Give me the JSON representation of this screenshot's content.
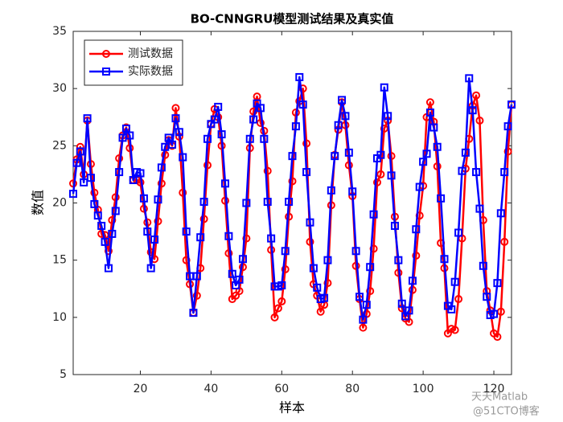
{
  "chart_data": {
    "type": "line",
    "title": "BO-CNNGRU模型测试结果及真实值",
    "x_label": "样本",
    "y_label": "数值",
    "watermark": [
      "天天Matlab",
      "@51CTO博客"
    ],
    "x": [
      1,
      2,
      3,
      4,
      5,
      6,
      7,
      8,
      9,
      10,
      11,
      12,
      13,
      14,
      15,
      16,
      17,
      18,
      19,
      20,
      21,
      22,
      23,
      24,
      25,
      26,
      27,
      28,
      29,
      30,
      31,
      32,
      33,
      34,
      35,
      36,
      37,
      38,
      39,
      40,
      41,
      42,
      43,
      44,
      45,
      46,
      47,
      48,
      49,
      50,
      51,
      52,
      53,
      54,
      55,
      56,
      57,
      58,
      59,
      60,
      61,
      62,
      63,
      64,
      65,
      66,
      67,
      68,
      69,
      70,
      71,
      72,
      73,
      74,
      75,
      76,
      77,
      78,
      79,
      80,
      81,
      82,
      83,
      84,
      85,
      86,
      87,
      88,
      89,
      90,
      91,
      92,
      93,
      94,
      95,
      96,
      97,
      98,
      99,
      100,
      101,
      102,
      103,
      104,
      105,
      106,
      107,
      108,
      109,
      110,
      111,
      112,
      113,
      114,
      115,
      116,
      117,
      118,
      119,
      120,
      121,
      122,
      123,
      124,
      125
    ],
    "series": [
      {
        "name": "测试数据",
        "color": "#ff0000",
        "marker": "circle",
        "values": [
          21.7,
          23.8,
          24.9,
          22.5,
          27.2,
          23.4,
          20.9,
          19.4,
          17.3,
          17.2,
          15.8,
          18.5,
          20.5,
          23.9,
          25.9,
          26.6,
          24.8,
          22.0,
          22.0,
          21.8,
          19.5,
          18.3,
          15.7,
          15.1,
          18.4,
          21.7,
          24.2,
          25.5,
          25.0,
          28.3,
          25.8,
          20.9,
          15.0,
          12.9,
          10.4,
          11.9,
          14.3,
          18.6,
          23.3,
          26.9,
          28.2,
          27.5,
          25.0,
          20.2,
          15.6,
          11.6,
          11.9,
          12.3,
          14.4,
          16.9,
          24.8,
          28.0,
          29.3,
          27.0,
          26.3,
          22.8,
          15.9,
          10.0,
          10.8,
          11.4,
          14.2,
          18.8,
          21.9,
          27.9,
          28.9,
          30.0,
          25.2,
          16.6,
          12.9,
          11.9,
          10.5,
          11.1,
          13.0,
          19.8,
          24.2,
          26.4,
          28.8,
          26.8,
          23.3,
          20.6,
          14.5,
          11.6,
          9.1,
          10.3,
          12.3,
          16.0,
          21.8,
          22.5,
          26.5,
          27.2,
          24.1,
          18.8,
          13.9,
          10.8,
          9.9,
          9.6,
          12.4,
          15.4,
          18.9,
          21.5,
          27.5,
          28.8,
          27.1,
          23.2,
          16.5,
          14.3,
          8.6,
          9.0,
          8.9,
          11.6,
          16.9,
          23.0,
          25.6,
          28.5,
          29.4,
          27.2,
          18.5,
          12.3,
          10.6,
          8.6,
          8.3,
          10.5,
          16.6,
          24.5,
          28.6
        ]
      },
      {
        "name": "实际数据",
        "color": "#0000ff",
        "marker": "square",
        "values": [
          20.8,
          23.5,
          24.5,
          21.8,
          27.4,
          22.2,
          19.9,
          18.9,
          18.0,
          16.6,
          14.3,
          17.3,
          19.3,
          22.7,
          25.7,
          26.5,
          25.9,
          22.0,
          22.7,
          22.6,
          20.4,
          17.5,
          14.3,
          16.8,
          20.3,
          23.1,
          24.9,
          25.7,
          25.1,
          27.4,
          26.2,
          24.0,
          17.5,
          13.6,
          10.4,
          13.6,
          17.0,
          20.1,
          25.6,
          26.9,
          27.3,
          28.4,
          26.0,
          21.7,
          17.1,
          13.8,
          12.8,
          13.3,
          15.1,
          20.0,
          25.6,
          27.3,
          28.7,
          28.3,
          25.6,
          20.1,
          16.9,
          12.7,
          12.7,
          12.8,
          15.8,
          20.1,
          24.1,
          26.7,
          31.0,
          28.6,
          22.7,
          18.3,
          14.3,
          12.6,
          11.6,
          11.7,
          15.0,
          21.1,
          24.1,
          26.8,
          29.0,
          27.6,
          24.4,
          21.0,
          15.8,
          11.8,
          9.8,
          11.1,
          14.4,
          19.0,
          23.9,
          24.2,
          30.1,
          27.6,
          22.4,
          18.0,
          15.0,
          11.2,
          10.1,
          10.6,
          13.2,
          17.7,
          21.4,
          23.6,
          24.3,
          27.9,
          26.6,
          24.9,
          20.4,
          15.1,
          11.0,
          10.7,
          13.1,
          17.4,
          22.8,
          24.4,
          30.9,
          28.1,
          22.7,
          19.5,
          14.5,
          11.8,
          10.2,
          10.3,
          13.0,
          19.1,
          22.7,
          26.7,
          28.6
        ]
      }
    ],
    "xlim": [
      1,
      125
    ],
    "ylim": [
      5,
      35
    ],
    "xticks": [
      20,
      40,
      60,
      80,
      100,
      120
    ],
    "yticks": [
      5,
      10,
      15,
      20,
      25,
      30,
      35
    ],
    "legend": "upper left",
    "grid": false
  }
}
